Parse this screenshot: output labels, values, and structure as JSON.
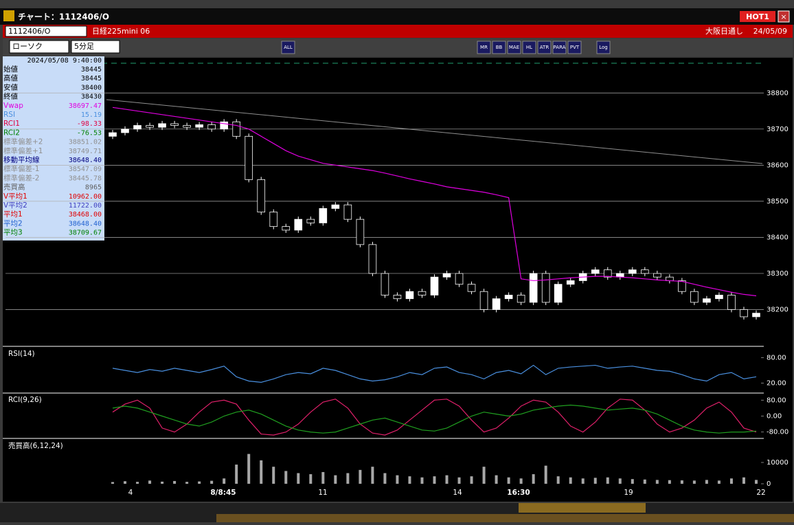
{
  "window": {
    "title": "チャート：1112406/O",
    "hot": "HOT1"
  },
  "symbol_bar": {
    "code": "1112406/O",
    "name": "日経225mini 06",
    "session": "大阪日通し",
    "date": "24/05/09"
  },
  "toolbar": {
    "chart_type": "ローソク",
    "interval": "5分足",
    "buttons": [
      "ALL",
      "MR",
      "BB",
      "MAE",
      "HL",
      "ATR",
      "PARA",
      "PVT",
      "Log"
    ]
  },
  "info_panel": {
    "time": "2024/05/08 9:40:00",
    "rows": [
      {
        "label": "始値",
        "value": "38445",
        "color": "#000000"
      },
      {
        "label": "高値",
        "value": "38445",
        "color": "#000000"
      },
      {
        "label": "安値",
        "value": "38400",
        "color": "#000000"
      },
      {
        "label": "終値",
        "value": "38430",
        "color": "#000000"
      },
      {
        "label": "Vwap",
        "value": "38697.47",
        "color": "#e000e0"
      },
      {
        "label": "RSI",
        "value": "15.19",
        "color": "#4a90e0"
      },
      {
        "label": "RCI1",
        "value": "-98.33",
        "color": "#e00040"
      },
      {
        "label": "RCI2",
        "value": "-76.53",
        "color": "#008000"
      },
      {
        "label": "標準偏差+2",
        "value": "38851.02",
        "color": "#909090"
      },
      {
        "label": "標準偏差+1",
        "value": "38749.71",
        "color": "#909090"
      },
      {
        "label": "移動平均線",
        "value": "38648.40",
        "color": "#000080"
      },
      {
        "label": "標準偏差-1",
        "value": "38547.09",
        "color": "#909090"
      },
      {
        "label": "標準偏差-2",
        "value": "38445.78",
        "color": "#909090"
      },
      {
        "label": "売買高",
        "value": "8965",
        "color": "#606060"
      },
      {
        "label": "V平均1",
        "value": "10962.00",
        "color": "#e00000"
      },
      {
        "label": "V平均2",
        "value": "11722.00",
        "color": "#4040c0"
      },
      {
        "label": "平均1",
        "value": "38468.00",
        "color": "#e00000"
      },
      {
        "label": "平均2",
        "value": "38648.40",
        "color": "#2060d0"
      },
      {
        "label": "平均3",
        "value": "38709.67",
        "color": "#008000"
      }
    ]
  },
  "chart_data": [
    {
      "type": "candlestick",
      "ylim": [
        38100,
        38890
      ],
      "yticks": [
        38200,
        38300,
        38400,
        38500,
        38600,
        38700,
        38800
      ],
      "grid": true,
      "x_labels": [
        "4",
        "8/8:45",
        "11",
        "14",
        "16:30",
        "19",
        "22"
      ],
      "open": [
        38680,
        38690,
        38700,
        38710,
        38705,
        38715,
        38710,
        38705,
        38712,
        38700,
        38720,
        38680,
        38560,
        38470,
        38430,
        38420,
        38450,
        38440,
        38480,
        38490,
        38450,
        38380,
        38300,
        38240,
        38230,
        38250,
        38240,
        38290,
        38300,
        38270,
        38250,
        38200,
        38230,
        38240,
        38220,
        38300,
        38220,
        38270,
        38280,
        38300,
        38310,
        38290,
        38300,
        38310,
        38300,
        38290,
        38280,
        38250,
        38220,
        38230,
        38240,
        38200,
        38180
      ],
      "close": [
        38690,
        38700,
        38710,
        38705,
        38715,
        38710,
        38705,
        38712,
        38700,
        38720,
        38680,
        38560,
        38470,
        38430,
        38420,
        38450,
        38440,
        38480,
        38490,
        38450,
        38380,
        38300,
        38240,
        38230,
        38250,
        38240,
        38290,
        38300,
        38270,
        38250,
        38200,
        38230,
        38240,
        38220,
        38300,
        38220,
        38270,
        38280,
        38300,
        38310,
        38290,
        38300,
        38310,
        38300,
        38290,
        38280,
        38250,
        38220,
        38230,
        38240,
        38200,
        38180,
        38190
      ],
      "series": [
        {
          "name": "Vwap",
          "color": "#e000e0",
          "values": [
            38760,
            38755,
            38750,
            38745,
            38740,
            38735,
            38730,
            38725,
            38720,
            38715,
            38710,
            38700,
            38680,
            38660,
            38640,
            38625,
            38615,
            38605,
            38600,
            38595,
            38590,
            38585,
            38578,
            38570,
            38562,
            38555,
            38548,
            38540,
            38535,
            38530,
            38525,
            38518,
            38510,
            38285,
            38280,
            38282,
            38285,
            38288,
            38290,
            38292,
            38292,
            38290,
            38288,
            38285,
            38282,
            38280,
            38278,
            38270,
            38262,
            38255,
            38248,
            38242,
            38238
          ]
        }
      ]
    },
    {
      "type": "line",
      "title": "RSI(14)",
      "ylim": [
        0,
        100
      ],
      "yticks": [
        {
          "value": 80,
          "label": "80.00"
        },
        {
          "value": 20,
          "label": "20.00"
        }
      ],
      "series": [
        {
          "name": "RSI",
          "color": "#4a90e0",
          "values": [
            55,
            50,
            45,
            52,
            48,
            55,
            50,
            45,
            52,
            60,
            35,
            25,
            22,
            30,
            40,
            45,
            42,
            55,
            50,
            40,
            30,
            25,
            28,
            35,
            45,
            40,
            55,
            58,
            45,
            40,
            30,
            45,
            50,
            42,
            62,
            40,
            55,
            58,
            60,
            62,
            55,
            58,
            60,
            55,
            50,
            48,
            40,
            30,
            25,
            40,
            45,
            30,
            35
          ]
        }
      ]
    },
    {
      "type": "line",
      "title": "RCI(9,26)",
      "ylim": [
        -105,
        105
      ],
      "yticks": [
        {
          "value": 80,
          "label": "80.00"
        },
        {
          "value": 0,
          "label": "0.00"
        },
        {
          "value": -80,
          "label": "-80.00"
        }
      ],
      "series": [
        {
          "name": "RCI1",
          "color": "#e0206a",
          "values": [
            20,
            60,
            80,
            40,
            -60,
            -80,
            -40,
            20,
            70,
            80,
            60,
            -20,
            -90,
            -95,
            -80,
            -40,
            20,
            70,
            85,
            40,
            -40,
            -85,
            -95,
            -70,
            -20,
            30,
            80,
            85,
            50,
            -20,
            -80,
            -60,
            -10,
            50,
            80,
            70,
            20,
            -50,
            -80,
            -30,
            40,
            85,
            80,
            30,
            -40,
            -80,
            -60,
            -20,
            40,
            70,
            20,
            -60,
            -80
          ]
        },
        {
          "name": "RCI2",
          "color": "#20a020",
          "values": [
            40,
            50,
            40,
            20,
            0,
            -20,
            -40,
            -50,
            -30,
            0,
            20,
            30,
            10,
            -20,
            -50,
            -70,
            -80,
            -85,
            -80,
            -60,
            -40,
            -20,
            -10,
            -30,
            -50,
            -70,
            -75,
            -60,
            -30,
            0,
            20,
            10,
            0,
            10,
            30,
            40,
            50,
            55,
            50,
            40,
            30,
            35,
            40,
            30,
            10,
            -20,
            -50,
            -70,
            -80,
            -85,
            -80,
            -80,
            -75
          ]
        }
      ]
    },
    {
      "type": "bar",
      "title": "売買高(6,12,24)",
      "ylim": [
        0,
        20000
      ],
      "yticks": [
        10000,
        0
      ],
      "color": "#a8a8a8",
      "values": [
        800,
        1200,
        900,
        1500,
        1000,
        1300,
        900,
        1100,
        1400,
        2500,
        9000,
        14000,
        11000,
        8000,
        6000,
        5000,
        4500,
        5500,
        4000,
        5000,
        6500,
        8000,
        5000,
        4000,
        3500,
        3000,
        3500,
        4000,
        3000,
        3500,
        8000,
        4000,
        3000,
        2500,
        4500,
        8500,
        3500,
        3000,
        2500,
        2800,
        3000,
        2500,
        2200,
        2000,
        1800,
        1700,
        1600,
        1500,
        1800,
        1500,
        2500,
        3000,
        1800
      ]
    }
  ]
}
